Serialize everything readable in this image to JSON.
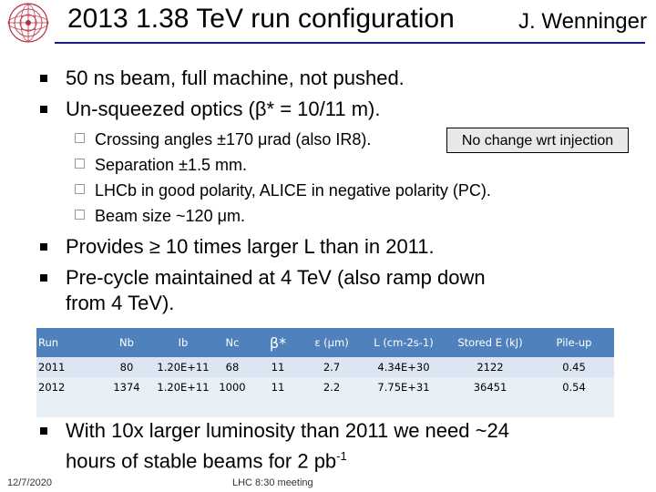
{
  "header": {
    "title": "2013 1.38 TeV run configuration",
    "author": "J. Wenninger",
    "logo_icon": "cern-logo-icon",
    "accent_color": "#1a1a8c"
  },
  "bullets_top": [
    "50 ns beam, full machine, not pushed.",
    "Un-squeezed optics (β* = 10/11 m)."
  ],
  "sub_bullets": [
    "Crossing angles ±170 μrad (also IR8).",
    "Separation ±1.5 mm.",
    "LHCb in good polarity, ALICE in negative polarity (PC).",
    "Beam size ~120 μm."
  ],
  "callout": "No change wrt injection",
  "bullets_mid": [
    "Provides ≥ 10 times larger L than in 2011.",
    "Pre-cycle maintained at 4 TeV (also ramp down",
    "from 4 TeV)."
  ],
  "table": {
    "header_color": "#4f81bd",
    "headers": [
      "Run",
      "Nb",
      "Ib",
      "Nc",
      "β*",
      "ε (μm)",
      "L (cm-2s-1)",
      "Stored E (kJ)",
      "Pile-up"
    ],
    "rows": [
      [
        "2011",
        "80",
        "1.20E+11",
        "68",
        "11",
        "2.7",
        "4.34E+30",
        "2122",
        "0.45"
      ],
      [
        "2012",
        "1374",
        "1.20E+11",
        "1000",
        "11",
        "2.2",
        "7.75E+31",
        "36451",
        "0.54"
      ]
    ]
  },
  "bullet_bottom": {
    "line1": "With 10x larger luminosity than 2011 we need ~24",
    "line2": "hours of stable beams for 2 pb",
    "sup": "-1"
  },
  "footer": {
    "date": "12/7/2020",
    "meeting": "LHC 8:30 meeting"
  }
}
